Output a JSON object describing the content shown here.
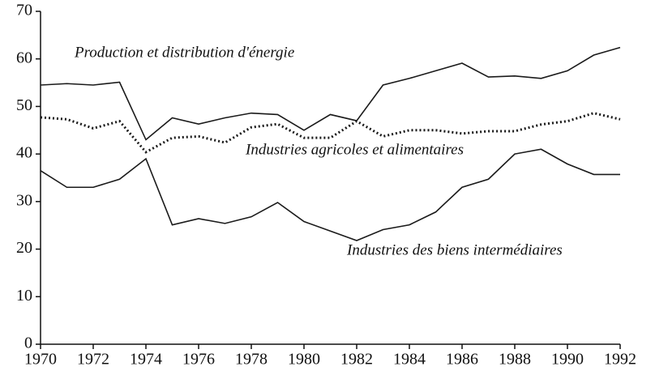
{
  "chart_data": {
    "type": "line",
    "x": [
      1970,
      1971,
      1972,
      1973,
      1974,
      1975,
      1976,
      1977,
      1978,
      1979,
      1980,
      1981,
      1982,
      1983,
      1984,
      1985,
      1986,
      1987,
      1988,
      1989,
      1990,
      1991,
      1992
    ],
    "series": [
      {
        "name": "Production et distribution d'énergie",
        "color": "#1a1a1a",
        "dash": "solid",
        "values": [
          54.5,
          54.8,
          54.5,
          55.1,
          43,
          47.6,
          46.3,
          47.6,
          48.6,
          48.3,
          45,
          48.3,
          47,
          54.5,
          55.9,
          57.5,
          59.1,
          56.2,
          56.4,
          55.9,
          57.5,
          60.8,
          62.4
        ]
      },
      {
        "name": "Industries agricoles et alimentaires",
        "color": "#1a1a1a",
        "dash": "dotted",
        "values": [
          47.7,
          47.3,
          45.4,
          46.9,
          40.4,
          43.4,
          43.7,
          42.4,
          45.6,
          46.3,
          43.4,
          43.4,
          46.9,
          43.7,
          45,
          45,
          44.3,
          44.8,
          44.8,
          46.2,
          46.9,
          48.6,
          47.3
        ]
      },
      {
        "name": "Industries des biens intermédiaires",
        "color": "#1a1a1a",
        "dash": "solid",
        "values": [
          36.5,
          33,
          33,
          34.7,
          39,
          25.1,
          26.4,
          25.4,
          26.8,
          29.8,
          25.8,
          23.8,
          21.8,
          24.1,
          25.1,
          27.8,
          33,
          34.7,
          40,
          41,
          37.9,
          35.7,
          35.7
        ]
      }
    ],
    "xlim": [
      1970,
      1992
    ],
    "xticks": [
      1970,
      1972,
      1974,
      1976,
      1978,
      1980,
      1982,
      1984,
      1986,
      1988,
      1990,
      1992
    ],
    "ylim": [
      0,
      70
    ],
    "yticks": [
      0,
      10,
      20,
      30,
      40,
      50,
      60,
      70
    ]
  }
}
